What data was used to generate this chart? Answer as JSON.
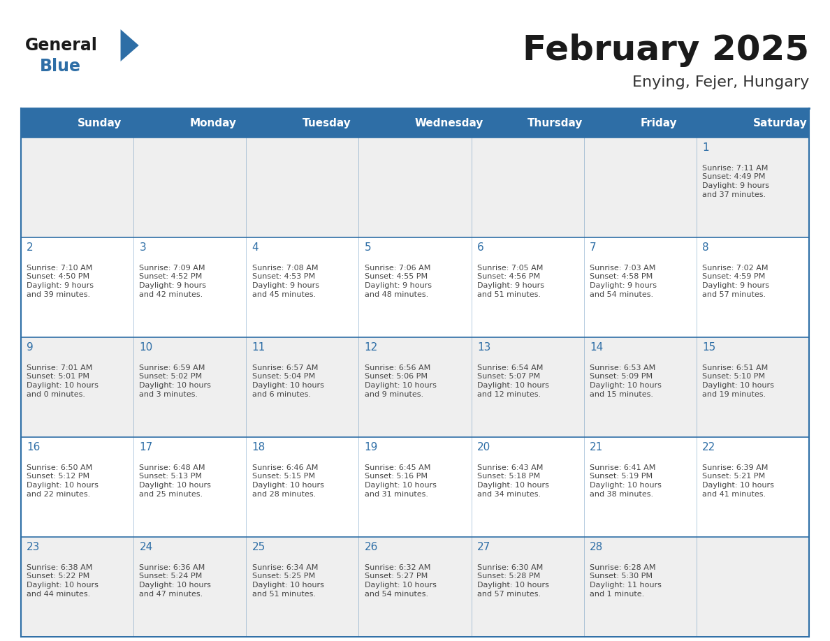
{
  "title": "February 2025",
  "subtitle": "Enying, Fejer, Hungary",
  "days_of_week": [
    "Sunday",
    "Monday",
    "Tuesday",
    "Wednesday",
    "Thursday",
    "Friday",
    "Saturday"
  ],
  "header_bg": "#2E6EA6",
  "header_text": "#FFFFFF",
  "cell_bg_light": "#EFEFEF",
  "cell_bg_white": "#FFFFFF",
  "border_color": "#2E6EA6",
  "day_number_color": "#2E6EA6",
  "info_color": "#444444",
  "title_color": "#1a1a1a",
  "subtitle_color": "#333333",
  "logo_general_color": "#1a1a1a",
  "logo_blue_color": "#2E6EA6",
  "weeks": [
    [
      {
        "day": null,
        "info": ""
      },
      {
        "day": null,
        "info": ""
      },
      {
        "day": null,
        "info": ""
      },
      {
        "day": null,
        "info": ""
      },
      {
        "day": null,
        "info": ""
      },
      {
        "day": null,
        "info": ""
      },
      {
        "day": 1,
        "info": "Sunrise: 7:11 AM\nSunset: 4:49 PM\nDaylight: 9 hours\nand 37 minutes."
      }
    ],
    [
      {
        "day": 2,
        "info": "Sunrise: 7:10 AM\nSunset: 4:50 PM\nDaylight: 9 hours\nand 39 minutes."
      },
      {
        "day": 3,
        "info": "Sunrise: 7:09 AM\nSunset: 4:52 PM\nDaylight: 9 hours\nand 42 minutes."
      },
      {
        "day": 4,
        "info": "Sunrise: 7:08 AM\nSunset: 4:53 PM\nDaylight: 9 hours\nand 45 minutes."
      },
      {
        "day": 5,
        "info": "Sunrise: 7:06 AM\nSunset: 4:55 PM\nDaylight: 9 hours\nand 48 minutes."
      },
      {
        "day": 6,
        "info": "Sunrise: 7:05 AM\nSunset: 4:56 PM\nDaylight: 9 hours\nand 51 minutes."
      },
      {
        "day": 7,
        "info": "Sunrise: 7:03 AM\nSunset: 4:58 PM\nDaylight: 9 hours\nand 54 minutes."
      },
      {
        "day": 8,
        "info": "Sunrise: 7:02 AM\nSunset: 4:59 PM\nDaylight: 9 hours\nand 57 minutes."
      }
    ],
    [
      {
        "day": 9,
        "info": "Sunrise: 7:01 AM\nSunset: 5:01 PM\nDaylight: 10 hours\nand 0 minutes."
      },
      {
        "day": 10,
        "info": "Sunrise: 6:59 AM\nSunset: 5:02 PM\nDaylight: 10 hours\nand 3 minutes."
      },
      {
        "day": 11,
        "info": "Sunrise: 6:57 AM\nSunset: 5:04 PM\nDaylight: 10 hours\nand 6 minutes."
      },
      {
        "day": 12,
        "info": "Sunrise: 6:56 AM\nSunset: 5:06 PM\nDaylight: 10 hours\nand 9 minutes."
      },
      {
        "day": 13,
        "info": "Sunrise: 6:54 AM\nSunset: 5:07 PM\nDaylight: 10 hours\nand 12 minutes."
      },
      {
        "day": 14,
        "info": "Sunrise: 6:53 AM\nSunset: 5:09 PM\nDaylight: 10 hours\nand 15 minutes."
      },
      {
        "day": 15,
        "info": "Sunrise: 6:51 AM\nSunset: 5:10 PM\nDaylight: 10 hours\nand 19 minutes."
      }
    ],
    [
      {
        "day": 16,
        "info": "Sunrise: 6:50 AM\nSunset: 5:12 PM\nDaylight: 10 hours\nand 22 minutes."
      },
      {
        "day": 17,
        "info": "Sunrise: 6:48 AM\nSunset: 5:13 PM\nDaylight: 10 hours\nand 25 minutes."
      },
      {
        "day": 18,
        "info": "Sunrise: 6:46 AM\nSunset: 5:15 PM\nDaylight: 10 hours\nand 28 minutes."
      },
      {
        "day": 19,
        "info": "Sunrise: 6:45 AM\nSunset: 5:16 PM\nDaylight: 10 hours\nand 31 minutes."
      },
      {
        "day": 20,
        "info": "Sunrise: 6:43 AM\nSunset: 5:18 PM\nDaylight: 10 hours\nand 34 minutes."
      },
      {
        "day": 21,
        "info": "Sunrise: 6:41 AM\nSunset: 5:19 PM\nDaylight: 10 hours\nand 38 minutes."
      },
      {
        "day": 22,
        "info": "Sunrise: 6:39 AM\nSunset: 5:21 PM\nDaylight: 10 hours\nand 41 minutes."
      }
    ],
    [
      {
        "day": 23,
        "info": "Sunrise: 6:38 AM\nSunset: 5:22 PM\nDaylight: 10 hours\nand 44 minutes."
      },
      {
        "day": 24,
        "info": "Sunrise: 6:36 AM\nSunset: 5:24 PM\nDaylight: 10 hours\nand 47 minutes."
      },
      {
        "day": 25,
        "info": "Sunrise: 6:34 AM\nSunset: 5:25 PM\nDaylight: 10 hours\nand 51 minutes."
      },
      {
        "day": 26,
        "info": "Sunrise: 6:32 AM\nSunset: 5:27 PM\nDaylight: 10 hours\nand 54 minutes."
      },
      {
        "day": 27,
        "info": "Sunrise: 6:30 AM\nSunset: 5:28 PM\nDaylight: 10 hours\nand 57 minutes."
      },
      {
        "day": 28,
        "info": "Sunrise: 6:28 AM\nSunset: 5:30 PM\nDaylight: 11 hours\nand 1 minute."
      },
      {
        "day": null,
        "info": ""
      }
    ]
  ]
}
